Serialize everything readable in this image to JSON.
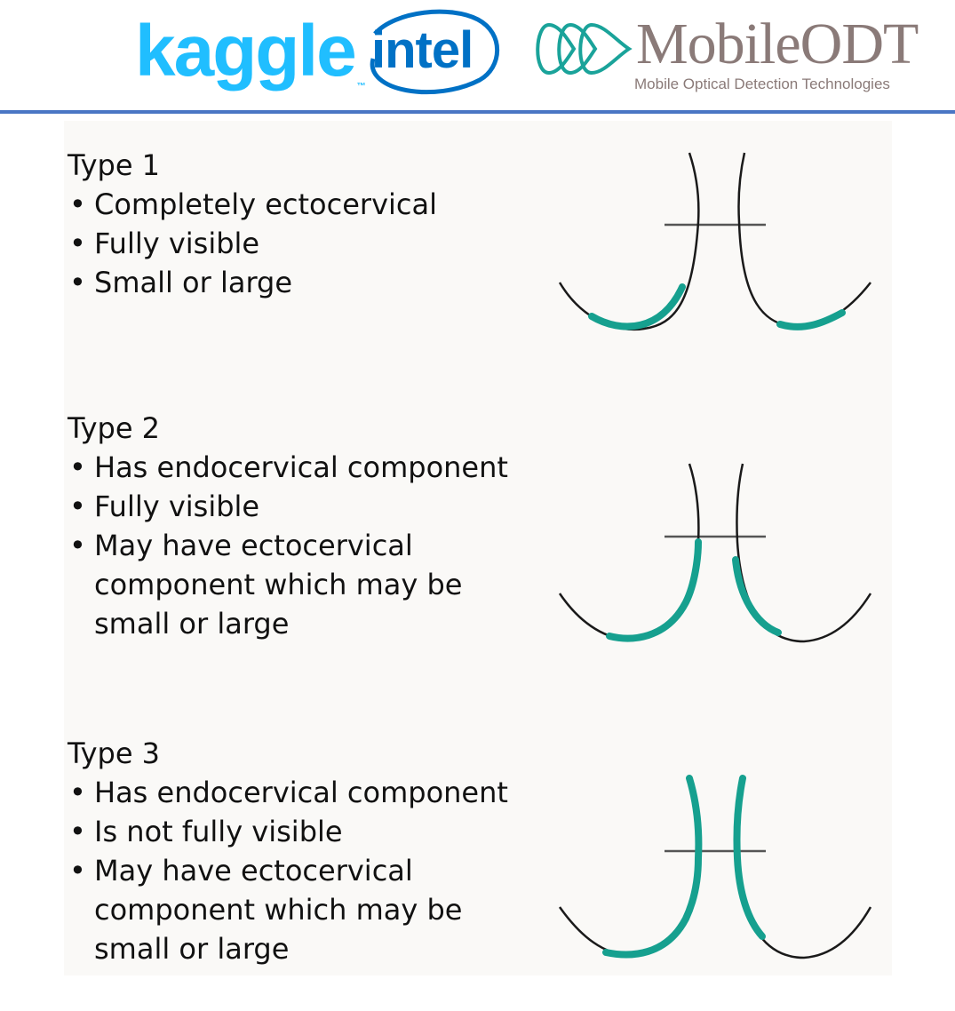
{
  "header": {
    "logos": {
      "kaggle": "kaggle",
      "intel": "intel",
      "mobileodt_name": "MobileODT",
      "mobileodt_tagline": "Mobile Optical Detection Technologies"
    }
  },
  "types": [
    {
      "title": "Type 1",
      "bullets": [
        "Completely ectocervical",
        "Fully visible",
        "Small or large"
      ]
    },
    {
      "title": "Type 2",
      "bullets": [
        "Has endocervical component",
        "Fully visible",
        "May have ectocervical component which may be small or large"
      ]
    },
    {
      "title": "Type 3",
      "bullets": [
        "Has endocervical component",
        "Is not fully visible",
        "May have ectocervical component which may be small or large"
      ]
    }
  ],
  "colors": {
    "kaggle_blue": "#20BEFF",
    "intel_blue": "#0071C5",
    "mobileodt_gray": "#8a7a78",
    "mobileodt_teal": "#1aa39a",
    "header_rule": "#4a76c4",
    "zone_teal": "#16a08f",
    "outline": "#1a1a1a"
  }
}
